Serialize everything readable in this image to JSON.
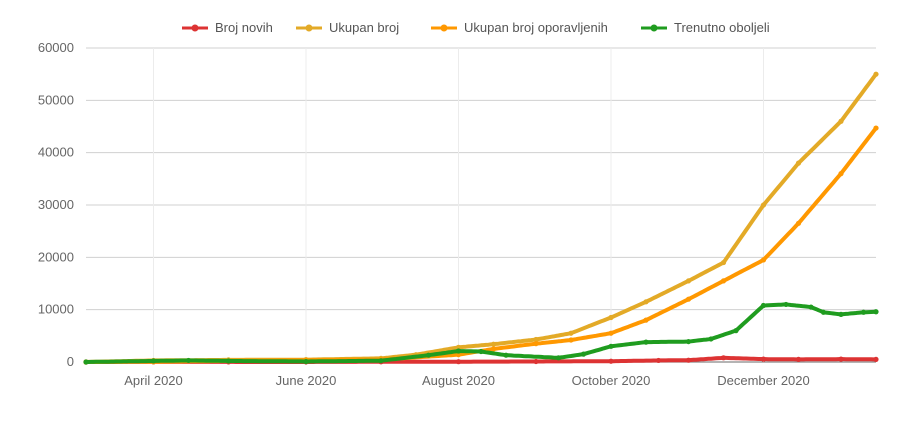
{
  "chart_data": {
    "type": "line",
    "title": "",
    "xlabel": "",
    "ylabel": "",
    "ylim": [
      0,
      60000
    ],
    "y_ticks": [
      "0",
      "10000",
      "20000",
      "30000",
      "40000",
      "50000",
      "60000"
    ],
    "x_ticks": [
      {
        "date": "2020-04-01",
        "label": "April 2020"
      },
      {
        "date": "2020-06-01",
        "label": "June 2020"
      },
      {
        "date": "2020-08-01",
        "label": "August 2020"
      },
      {
        "date": "2020-10-01",
        "label": "October 2020"
      },
      {
        "date": "2020-12-01",
        "label": "December 2020"
      }
    ],
    "x_range": [
      "2020-03-05",
      "2021-01-15"
    ],
    "grid": true,
    "legend_position": "top",
    "series": [
      {
        "name": "Broj novih",
        "color": "#dd3333",
        "points": [
          [
            "2020-03-05",
            0
          ],
          [
            "2020-04-01",
            20
          ],
          [
            "2020-05-01",
            10
          ],
          [
            "2020-06-01",
            5
          ],
          [
            "2020-07-01",
            40
          ],
          [
            "2020-08-01",
            60
          ],
          [
            "2020-09-01",
            100
          ],
          [
            "2020-10-01",
            150
          ],
          [
            "2020-10-20",
            300
          ],
          [
            "2020-11-01",
            350
          ],
          [
            "2020-11-15",
            800
          ],
          [
            "2020-12-01",
            550
          ],
          [
            "2020-12-15",
            500
          ],
          [
            "2021-01-01",
            550
          ],
          [
            "2021-01-15",
            500
          ]
        ]
      },
      {
        "name": "Ukupan broj",
        "color": "#e3aa27",
        "points": [
          [
            "2020-03-05",
            0
          ],
          [
            "2020-04-01",
            300
          ],
          [
            "2020-05-01",
            400
          ],
          [
            "2020-06-01",
            450
          ],
          [
            "2020-07-01",
            700
          ],
          [
            "2020-07-15",
            1400
          ],
          [
            "2020-08-01",
            2800
          ],
          [
            "2020-08-15",
            3400
          ],
          [
            "2020-09-01",
            4300
          ],
          [
            "2020-09-15",
            5500
          ],
          [
            "2020-10-01",
            8500
          ],
          [
            "2020-10-15",
            11500
          ],
          [
            "2020-11-01",
            15500
          ],
          [
            "2020-11-15",
            19000
          ],
          [
            "2020-12-01",
            30000
          ],
          [
            "2020-12-15",
            38000
          ],
          [
            "2021-01-01",
            46000
          ],
          [
            "2021-01-15",
            55000
          ]
        ]
      },
      {
        "name": "Ukupan broj oporavljenih",
        "color": "#ff9800",
        "points": [
          [
            "2020-03-05",
            0
          ],
          [
            "2020-04-01",
            50
          ],
          [
            "2020-05-01",
            200
          ],
          [
            "2020-06-01",
            350
          ],
          [
            "2020-07-01",
            450
          ],
          [
            "2020-08-01",
            1400
          ],
          [
            "2020-08-15",
            2500
          ],
          [
            "2020-09-01",
            3500
          ],
          [
            "2020-09-15",
            4200
          ],
          [
            "2020-10-01",
            5500
          ],
          [
            "2020-10-15",
            8000
          ],
          [
            "2020-11-01",
            12000
          ],
          [
            "2020-11-15",
            15500
          ],
          [
            "2020-12-01",
            19500
          ],
          [
            "2020-12-15",
            26500
          ],
          [
            "2021-01-01",
            36000
          ],
          [
            "2021-01-15",
            44700
          ]
        ]
      },
      {
        "name": "Trenutno oboljeli",
        "color": "#1f9c1f",
        "points": [
          [
            "2020-03-05",
            0
          ],
          [
            "2020-04-01",
            200
          ],
          [
            "2020-04-15",
            300
          ],
          [
            "2020-05-01",
            200
          ],
          [
            "2020-06-01",
            100
          ],
          [
            "2020-07-01",
            250
          ],
          [
            "2020-07-20",
            1300
          ],
          [
            "2020-08-01",
            2100
          ],
          [
            "2020-08-10",
            2000
          ],
          [
            "2020-08-20",
            1300
          ],
          [
            "2020-09-10",
            800
          ],
          [
            "2020-09-20",
            1500
          ],
          [
            "2020-10-01",
            3000
          ],
          [
            "2020-10-15",
            3800
          ],
          [
            "2020-11-01",
            3900
          ],
          [
            "2020-11-10",
            4400
          ],
          [
            "2020-11-20",
            6000
          ],
          [
            "2020-12-01",
            10800
          ],
          [
            "2020-12-10",
            11000
          ],
          [
            "2020-12-20",
            10500
          ],
          [
            "2020-12-25",
            9500
          ],
          [
            "2021-01-01",
            9100
          ],
          [
            "2021-01-10",
            9500
          ],
          [
            "2021-01-15",
            9600
          ]
        ]
      }
    ]
  }
}
